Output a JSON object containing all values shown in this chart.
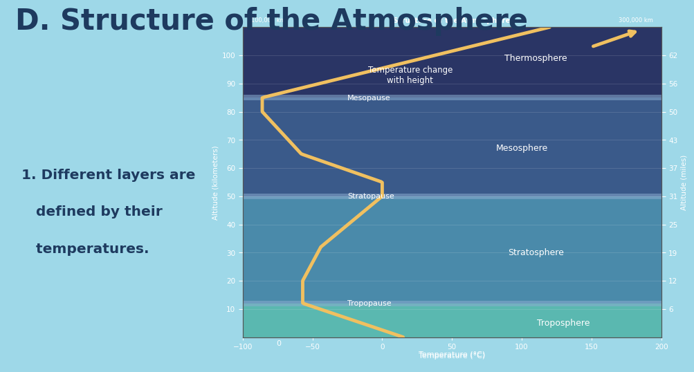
{
  "title": "D. Structure of the Atmosphere",
  "subtitle_line1": "1. Different layers are",
  "subtitle_line2": "   defined by their",
  "subtitle_line3": "   temperatures.",
  "title_color": "#1e3a5f",
  "subtitle_color": "#1e3a5f",
  "bg_color": "#9ed8e8",
  "chart_left_strip": "#111111",
  "chart_troposphere_color": "#5ab8b0",
  "chart_stratosphere_color": "#4a8aaa",
  "chart_mesosphere_color": "#3a5a8a",
  "chart_thermosphere_color": "#2a3565",
  "chart_tropopause_color": "#8aaccf",
  "chart_stratopause_color": "#8aaccf",
  "chart_mesopause_color": "#8aaccf",
  "temp_profile_alt": [
    0,
    12,
    20,
    32,
    50,
    55,
    65,
    80,
    85,
    110
  ],
  "temp_profile_temp": [
    15,
    -57,
    -57,
    -44,
    0,
    0,
    -58,
    -86,
    -86,
    120
  ],
  "line_color": "#f0c060",
  "line_width": 3.5,
  "xlim": [
    -100,
    200
  ],
  "ylim": [
    0,
    110
  ],
  "yticks_km": [
    10,
    20,
    30,
    40,
    50,
    60,
    70,
    80,
    90,
    100
  ],
  "yticks_miles": [
    6,
    12,
    19,
    25,
    31,
    37,
    43,
    50,
    56,
    62
  ],
  "label_troposphere": "Troposphere",
  "label_tropopause": "Tropopause",
  "label_stratosphere": "Stratosphere",
  "label_stratopause": "Stratopause",
  "label_mesosphere": "Mesosphere",
  "label_mesopause": "Mesopause",
  "label_thermosphere": "Thermosphere",
  "label_temp_change": "Temperature change\nwith height",
  "xlabel": "Temperature (°C)"
}
